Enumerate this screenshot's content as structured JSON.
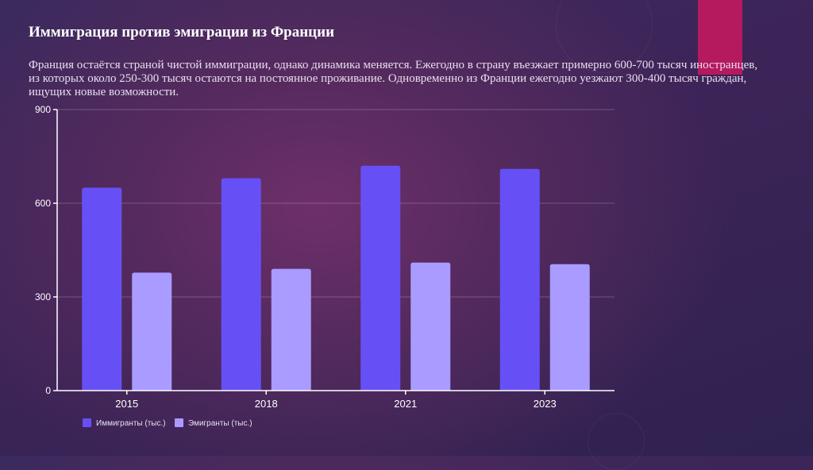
{
  "slide": {
    "title": "Иммиграция против эмиграции из Франции",
    "description": "Франция остаётся страной чистой иммиграции, однако динамика меняется. Ежегодно в страну въезжает примерно 600-700 тысяч иностранцев, из которых около 250-300 тысяч остаются на постоянное проживание. Одновременно из Франции ежегодно уезжают 300-400 тысяч граждан, ищущих новые возможности.",
    "accent_color": "#b5195e"
  },
  "chart_data": {
    "type": "bar",
    "categories": [
      "2015",
      "2018",
      "2021",
      "2023"
    ],
    "series": [
      {
        "name": "Иммигранты (тыс.)",
        "values": [
          650,
          680,
          720,
          710
        ],
        "color": "#6650f5"
      },
      {
        "name": "Эмигранты (тыс.)",
        "values": [
          378,
          390,
          410,
          405
        ],
        "color": "#a99bff"
      }
    ],
    "yticks": [
      0,
      300,
      600,
      900
    ],
    "ylim": [
      0,
      900
    ],
    "grid": true,
    "legend_position": "bottom-left",
    "xlabel": "",
    "ylabel": ""
  }
}
